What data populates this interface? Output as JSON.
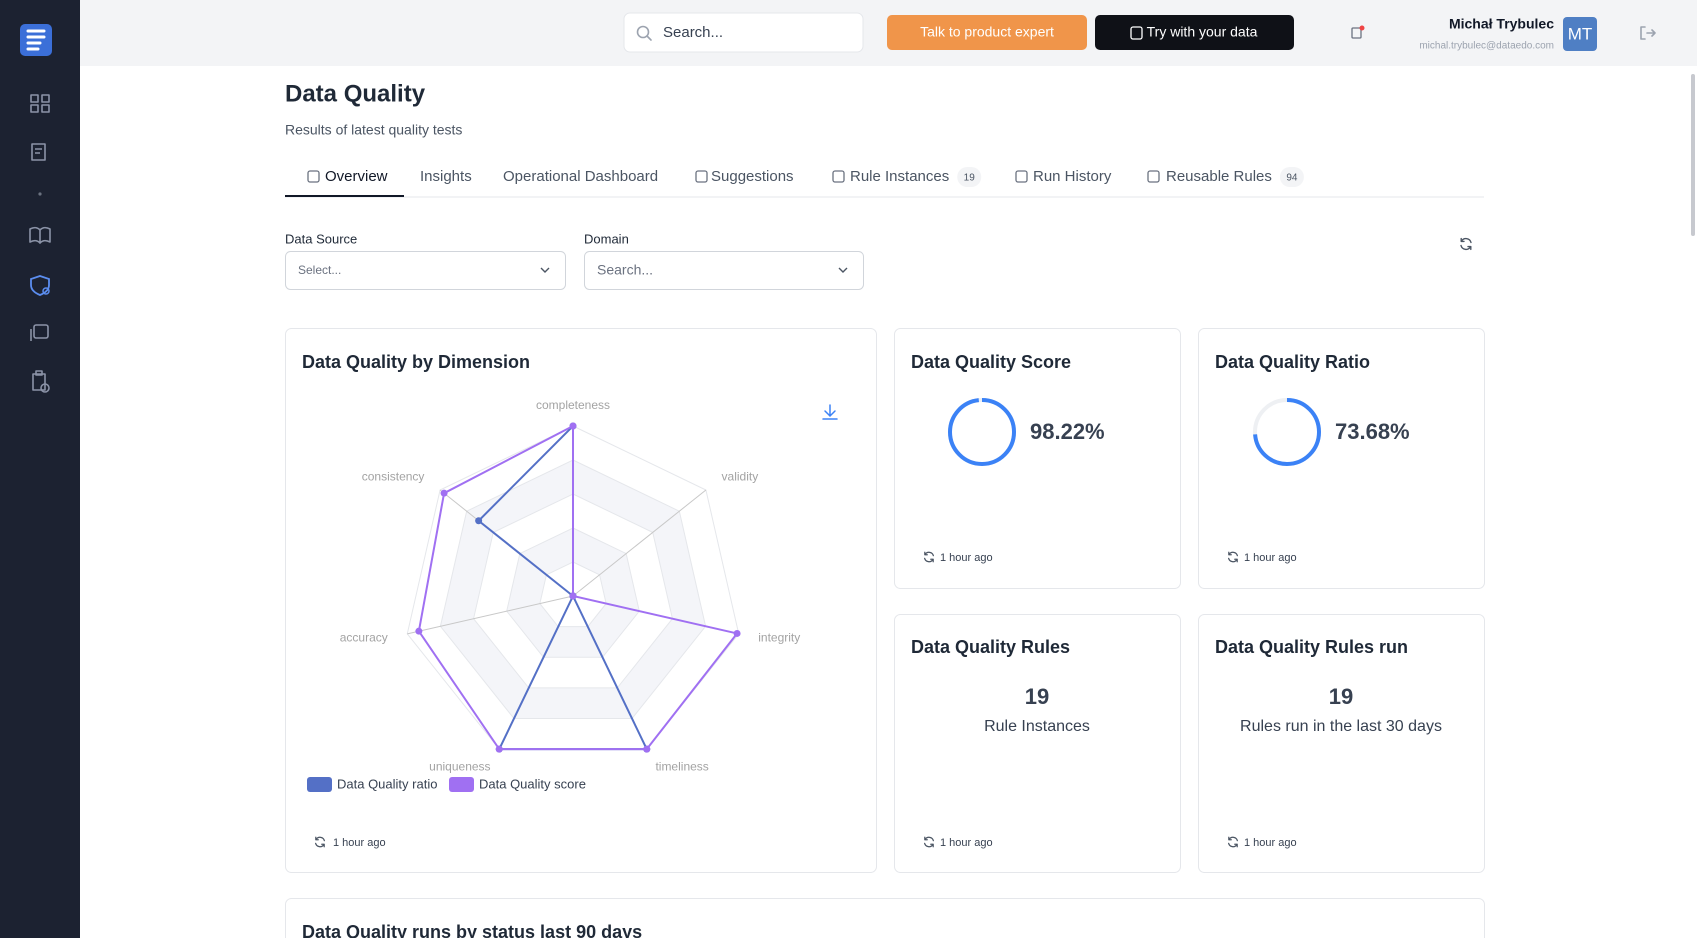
{
  "topbar": {
    "search_placeholder": "Search...",
    "talk_button": "Talk to product expert",
    "try_button": "Try with your data",
    "user_name": "Michał Trybulec",
    "user_email": "michal.trybulec@dataedo.com",
    "avatar": "MT"
  },
  "header": {
    "title": "Data Quality",
    "subtitle": "Results of latest quality tests"
  },
  "tabs": [
    {
      "label": "Overview"
    },
    {
      "label": "Insights"
    },
    {
      "label": "Operational Dashboard"
    },
    {
      "label": "Suggestions"
    },
    {
      "label": "Rule Instances",
      "badge": "19"
    },
    {
      "label": "Run History"
    },
    {
      "label": "Reusable Rules",
      "badge": "94"
    }
  ],
  "filters": [
    {
      "label": "Data Source",
      "placeholder": "Select..."
    },
    {
      "label": "Domain",
      "placeholder": "Search..."
    }
  ],
  "cards": {
    "score": {
      "title": "Data Quality Score",
      "value": 98.22,
      "label": "98.22%",
      "updated": "1 hour ago"
    },
    "ratio": {
      "title": "Data Quality Ratio",
      "value": 73.68,
      "label": "73.68%",
      "updated": "1 hour ago"
    },
    "rules": {
      "title": "Data Quality Rules",
      "count": 19,
      "caption": "Rule Instances",
      "updated": "1 hour ago"
    },
    "rules_run": {
      "title": "Data Quality Rules run",
      "count": 19,
      "caption": "Rules run in the last 30 days",
      "updated": "1 hour ago"
    },
    "runs": {
      "title": "Data Quality runs by status last 90 days"
    }
  },
  "chart_data": {
    "type": "radar",
    "title": "Data Quality by Dimension",
    "categories": [
      "completeness",
      "validity",
      "integrity",
      "timeliness",
      "uniqueness",
      "accuracy",
      "consistency"
    ],
    "series": [
      {
        "name": "Data Quality ratio",
        "color": "#5470c6",
        "values": [
          100,
          0,
          0,
          100,
          100,
          0,
          71
        ]
      },
      {
        "name": "Data Quality score",
        "color": "#a070f2",
        "values": [
          100,
          0,
          99,
          100,
          100,
          93,
          97
        ]
      }
    ],
    "rlim": [
      0,
      100
    ],
    "updated": "1 hour ago"
  }
}
